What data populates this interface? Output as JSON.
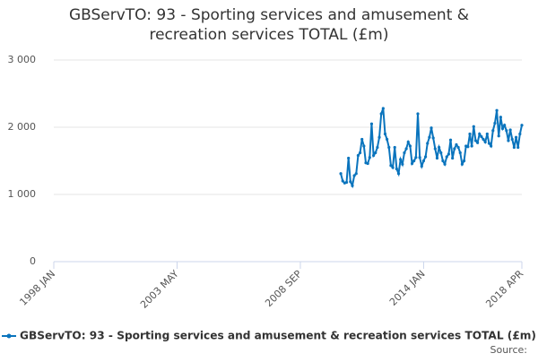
{
  "chart_data": {
    "type": "line",
    "title": "GBServTO: 93 - Sporting services and amusement & recreation services TOTAL (£m)",
    "source_label": "Source:",
    "categories": [
      "1998 JAN",
      null,
      null,
      null,
      null,
      null,
      null,
      null,
      null,
      null,
      null,
      null,
      null,
      null,
      null,
      null,
      null,
      null,
      null,
      null,
      null,
      null,
      null,
      null,
      null,
      null,
      null,
      null,
      null,
      null,
      null,
      null,
      null,
      null,
      null,
      null,
      null,
      null,
      null,
      null,
      null,
      null,
      null,
      null,
      null,
      null,
      null,
      null,
      null,
      null,
      null,
      null,
      null,
      null,
      null,
      null,
      null,
      null,
      null,
      null,
      null,
      null,
      null,
      null,
      "2003 MAY",
      null,
      null,
      null,
      null,
      null,
      null,
      null,
      null,
      null,
      null,
      null,
      null,
      null,
      null,
      null,
      null,
      null,
      null,
      null,
      null,
      null,
      null,
      null,
      null,
      null,
      null,
      null,
      null,
      null,
      null,
      null,
      null,
      null,
      null,
      null,
      null,
      null,
      null,
      null,
      null,
      null,
      null,
      null,
      null,
      null,
      null,
      null,
      null,
      null,
      null,
      null,
      null,
      null,
      null,
      null,
      null,
      null,
      null,
      null,
      null,
      null,
      null,
      null,
      "2008 SEP",
      null,
      null,
      null,
      null,
      null,
      null,
      null,
      null,
      null,
      null,
      null,
      null,
      null,
      null,
      null,
      null,
      null,
      null,
      null,
      null,
      null,
      null,
      null,
      null,
      null,
      null,
      null,
      null,
      null,
      null,
      null,
      null,
      null,
      null,
      null,
      null,
      null,
      null,
      null,
      null,
      null,
      null,
      null,
      null,
      null,
      null,
      null,
      null,
      null,
      null,
      null,
      null,
      null,
      null,
      null,
      null,
      null,
      null,
      null,
      null,
      null,
      null,
      null,
      "2014 JAN",
      null,
      null,
      null,
      null,
      null,
      null,
      null,
      null,
      null,
      null,
      null,
      null,
      null,
      null,
      null,
      null,
      null,
      null,
      null,
      null,
      null,
      null,
      null,
      null,
      null,
      null,
      null,
      null,
      null,
      null,
      null,
      null,
      null,
      null,
      null,
      null,
      null,
      null,
      null,
      null,
      null,
      null,
      null,
      null,
      null,
      null,
      null,
      null,
      null,
      null,
      "2018 APR"
    ],
    "series": [
      {
        "name": "GBServTO: 93 - Sporting services and amusement & recreation services TOTAL (£m)",
        "color": "#0a74bd",
        "values": [
          null,
          null,
          null,
          null,
          null,
          null,
          null,
          null,
          null,
          null,
          null,
          null,
          null,
          null,
          null,
          null,
          null,
          null,
          null,
          null,
          null,
          null,
          null,
          null,
          null,
          null,
          null,
          null,
          null,
          null,
          null,
          null,
          null,
          null,
          null,
          null,
          null,
          null,
          null,
          null,
          null,
          null,
          null,
          null,
          null,
          null,
          null,
          null,
          null,
          null,
          null,
          null,
          null,
          null,
          null,
          null,
          null,
          null,
          null,
          null,
          null,
          null,
          null,
          null,
          null,
          null,
          null,
          null,
          null,
          null,
          null,
          null,
          null,
          null,
          null,
          null,
          null,
          null,
          null,
          null,
          null,
          null,
          null,
          null,
          null,
          null,
          null,
          null,
          null,
          null,
          null,
          null,
          null,
          null,
          null,
          null,
          null,
          null,
          null,
          null,
          null,
          null,
          null,
          null,
          null,
          null,
          null,
          null,
          null,
          null,
          null,
          null,
          null,
          null,
          null,
          null,
          null,
          null,
          null,
          null,
          null,
          null,
          null,
          null,
          null,
          null,
          null,
          null,
          null,
          null,
          null,
          null,
          null,
          null,
          null,
          null,
          null,
          null,
          null,
          null,
          null,
          null,
          null,
          null,
          null,
          null,
          null,
          null,
          null,
          1310,
          1200,
          1170,
          1180,
          1540,
          1190,
          1130,
          1280,
          1310,
          1580,
          1620,
          1820,
          1720,
          1470,
          1460,
          1550,
          2050,
          1580,
          1620,
          1700,
          1850,
          2200,
          2280,
          1900,
          1820,
          1700,
          1430,
          1400,
          1700,
          1380,
          1310,
          1520,
          1450,
          1620,
          1680,
          1780,
          1720,
          1460,
          1500,
          1550,
          2200,
          1550,
          1420,
          1500,
          1560,
          1760,
          1850,
          1990,
          1840,
          1680,
          1540,
          1700,
          1620,
          1500,
          1450,
          1560,
          1600,
          1810,
          1540,
          1680,
          1740,
          1700,
          1620,
          1450,
          1500,
          1720,
          1710,
          1900,
          1720,
          2010,
          1800,
          1770,
          1900,
          1860,
          1820,
          1780,
          1900,
          1760,
          1720,
          1950,
          2060,
          2250,
          1870,
          2150,
          1980,
          2030,
          1950,
          1800,
          1960,
          1820,
          1700,
          1850,
          1700,
          1900,
          2030
        ]
      }
    ],
    "ylim": [
      0,
      3000
    ],
    "yticks": [
      0,
      {
        "value": 1000,
        "label": "1 000"
      },
      {
        "value": 2000,
        "label": "2 000"
      },
      {
        "value": 3000,
        "label": "3 000"
      }
    ],
    "grid": true
  }
}
